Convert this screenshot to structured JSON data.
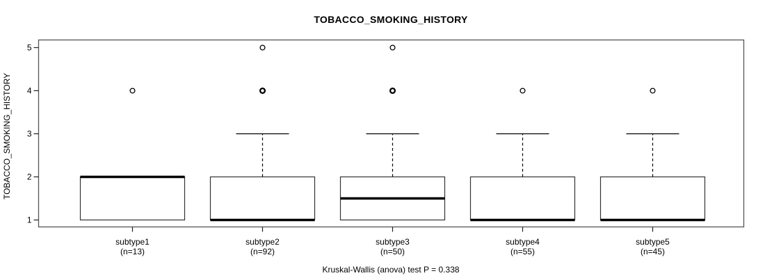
{
  "chart_data": {
    "type": "boxplot",
    "title": "TOBACCO_SMOKING_HISTORY",
    "ylabel": "TOBACCO_SMOKING_HISTORY",
    "footnote": "Kruskal-Wallis (anova) test P = 0.338",
    "ylim": [
      1,
      5
    ],
    "y_ticks": [
      1,
      2,
      3,
      4,
      5
    ],
    "grid": false,
    "colors": {
      "data_line": "#000000",
      "frame_line": "#555555",
      "box_fill": "#ffffff",
      "background": "#ffffff"
    },
    "groups": [
      {
        "label": "subtype1",
        "n_label": "(n=13)",
        "q1": 1,
        "median": 2,
        "q3": 2,
        "whisker_low": 1,
        "whisker_high": 2,
        "outliers": [
          {
            "value": 4,
            "emphasis": false
          }
        ]
      },
      {
        "label": "subtype2",
        "n_label": "(n=92)",
        "q1": 1,
        "median": 1,
        "q3": 2,
        "whisker_low": 1,
        "whisker_high": 3,
        "outliers": [
          {
            "value": 4,
            "emphasis": true
          },
          {
            "value": 5,
            "emphasis": false
          }
        ]
      },
      {
        "label": "subtype3",
        "n_label": "(n=50)",
        "q1": 1,
        "median": 1.5,
        "q3": 2,
        "whisker_low": 1,
        "whisker_high": 3,
        "outliers": [
          {
            "value": 4,
            "emphasis": true
          },
          {
            "value": 5,
            "emphasis": false
          }
        ]
      },
      {
        "label": "subtype4",
        "n_label": "(n=55)",
        "q1": 1,
        "median": 1,
        "q3": 2,
        "whisker_low": 1,
        "whisker_high": 3,
        "outliers": [
          {
            "value": 4,
            "emphasis": false
          }
        ]
      },
      {
        "label": "subtype5",
        "n_label": "(n=45)",
        "q1": 1,
        "median": 1,
        "q3": 2,
        "whisker_low": 1,
        "whisker_high": 3,
        "outliers": [
          {
            "value": 4,
            "emphasis": false
          }
        ]
      }
    ]
  }
}
